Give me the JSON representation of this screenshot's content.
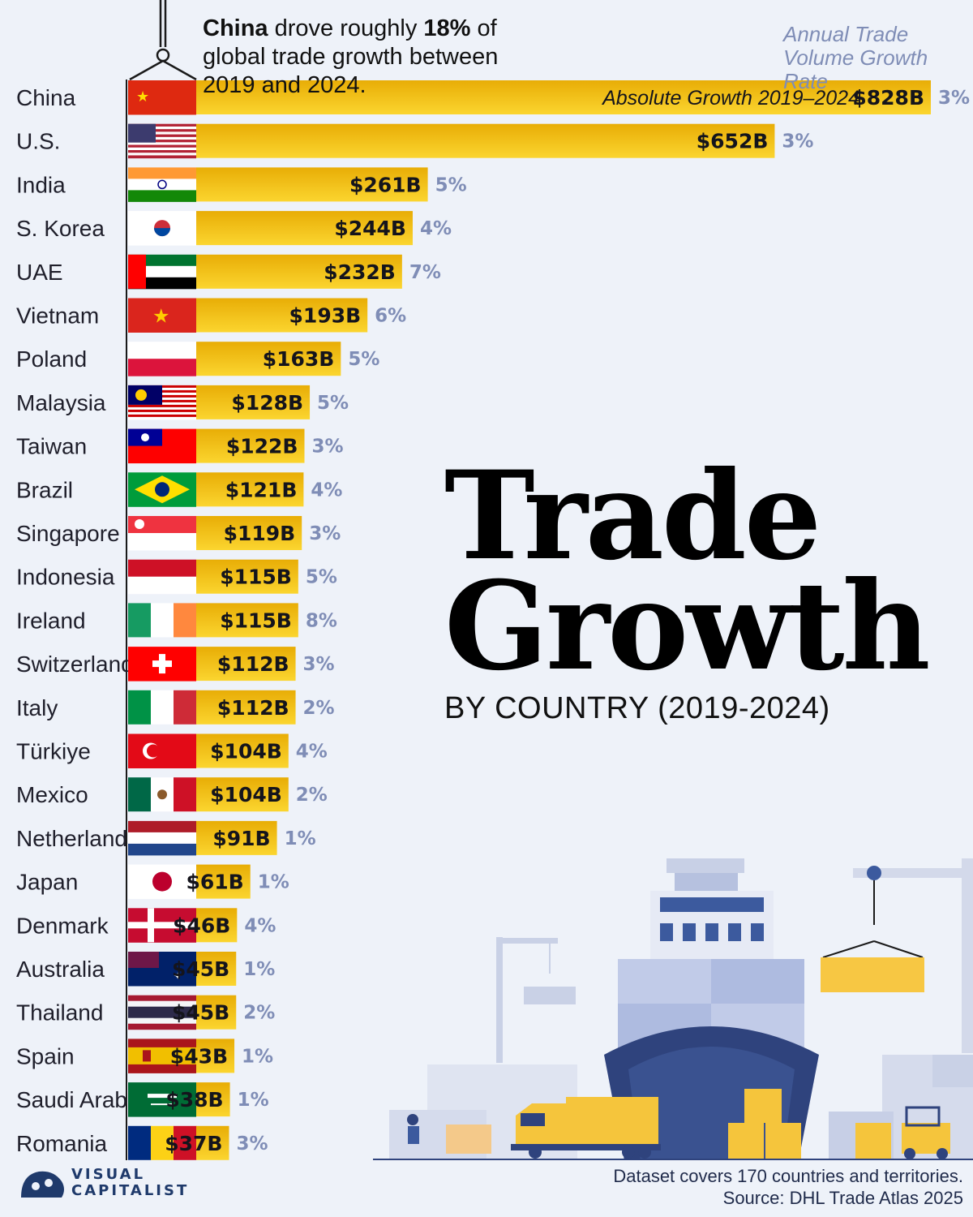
{
  "header": {
    "subtitle_bold_1": "China",
    "subtitle_text_1": " drove roughly ",
    "subtitle_bold_2": "18%",
    "subtitle_text_2": " of global trade growth between 2019 and 2024."
  },
  "legend": {
    "rate_line1": "Annual Trade",
    "rate_line2": "Volume Growth Rate",
    "absolute_label": "Absolute Growth 2019–2024"
  },
  "title": {
    "line1": "Trade",
    "line2": "Growth",
    "sub": "BY COUNTRY (2019-2024)"
  },
  "footer": {
    "note": "Dataset covers 170 countries and territories.",
    "source": "Source: DHL Trade Atlas 2025",
    "brand_line1": "VISUAL",
    "brand_line2": "CAPITALIST"
  },
  "colors": {
    "bar_top": "#e8ad06",
    "bar_bottom": "#fbd52f",
    "rate_text": "#7f8db6",
    "background": "#eef2f9"
  },
  "chart_data": {
    "type": "bar",
    "orientation": "horizontal",
    "unit": "USD billions",
    "categories": [
      "China",
      "U.S.",
      "India",
      "S. Korea",
      "UAE",
      "Vietnam",
      "Poland",
      "Malaysia",
      "Taiwan",
      "Brazil",
      "Singapore",
      "Indonesia",
      "Ireland",
      "Switzerland",
      "Italy",
      "Türkiye",
      "Mexico",
      "Netherlands",
      "Japan",
      "Denmark",
      "Australia",
      "Thailand",
      "Spain",
      "Saudi Arabia",
      "Romania"
    ],
    "value_labels": [
      "$828B",
      "$652B",
      "$261B",
      "$244B",
      "$232B",
      "$193B",
      "$163B",
      "$128B",
      "$122B",
      "$121B",
      "$119B",
      "$115B",
      "$115B",
      "$112B",
      "$112B",
      "$104B",
      "$104B",
      "$91B",
      "$61B",
      "$46B",
      "$45B",
      "$45B",
      "$43B",
      "$38B",
      "$37B"
    ],
    "values": [
      828,
      652,
      261,
      244,
      232,
      193,
      163,
      128,
      122,
      121,
      119,
      115,
      115,
      112,
      112,
      104,
      104,
      91,
      61,
      46,
      45,
      45,
      43,
      38,
      37
    ],
    "rate_labels": [
      "3%",
      "3%",
      "5%",
      "4%",
      "7%",
      "6%",
      "5%",
      "5%",
      "3%",
      "4%",
      "3%",
      "5%",
      "8%",
      "3%",
      "2%",
      "4%",
      "2%",
      "1%",
      "1%",
      "4%",
      "1%",
      "2%",
      "1%",
      "1%",
      "3%"
    ],
    "rates": [
      3,
      3,
      5,
      4,
      7,
      6,
      5,
      5,
      3,
      4,
      3,
      5,
      8,
      3,
      2,
      4,
      2,
      1,
      1,
      4,
      1,
      2,
      1,
      1,
      3
    ],
    "flags": [
      "china-flag-icon",
      "us-flag-icon",
      "india-flag-icon",
      "south-korea-flag-icon",
      "uae-flag-icon",
      "vietnam-flag-icon",
      "poland-flag-icon",
      "malaysia-flag-icon",
      "taiwan-flag-icon",
      "brazil-flag-icon",
      "singapore-flag-icon",
      "indonesia-flag-icon",
      "ireland-flag-icon",
      "switzerland-flag-icon",
      "italy-flag-icon",
      "turkiye-flag-icon",
      "mexico-flag-icon",
      "netherlands-flag-icon",
      "japan-flag-icon",
      "denmark-flag-icon",
      "australia-flag-icon",
      "thailand-flag-icon",
      "spain-flag-icon",
      "saudi-arabia-flag-icon",
      "romania-flag-icon"
    ],
    "title": "Trade Growth",
    "xlim": [
      0,
      828
    ]
  }
}
